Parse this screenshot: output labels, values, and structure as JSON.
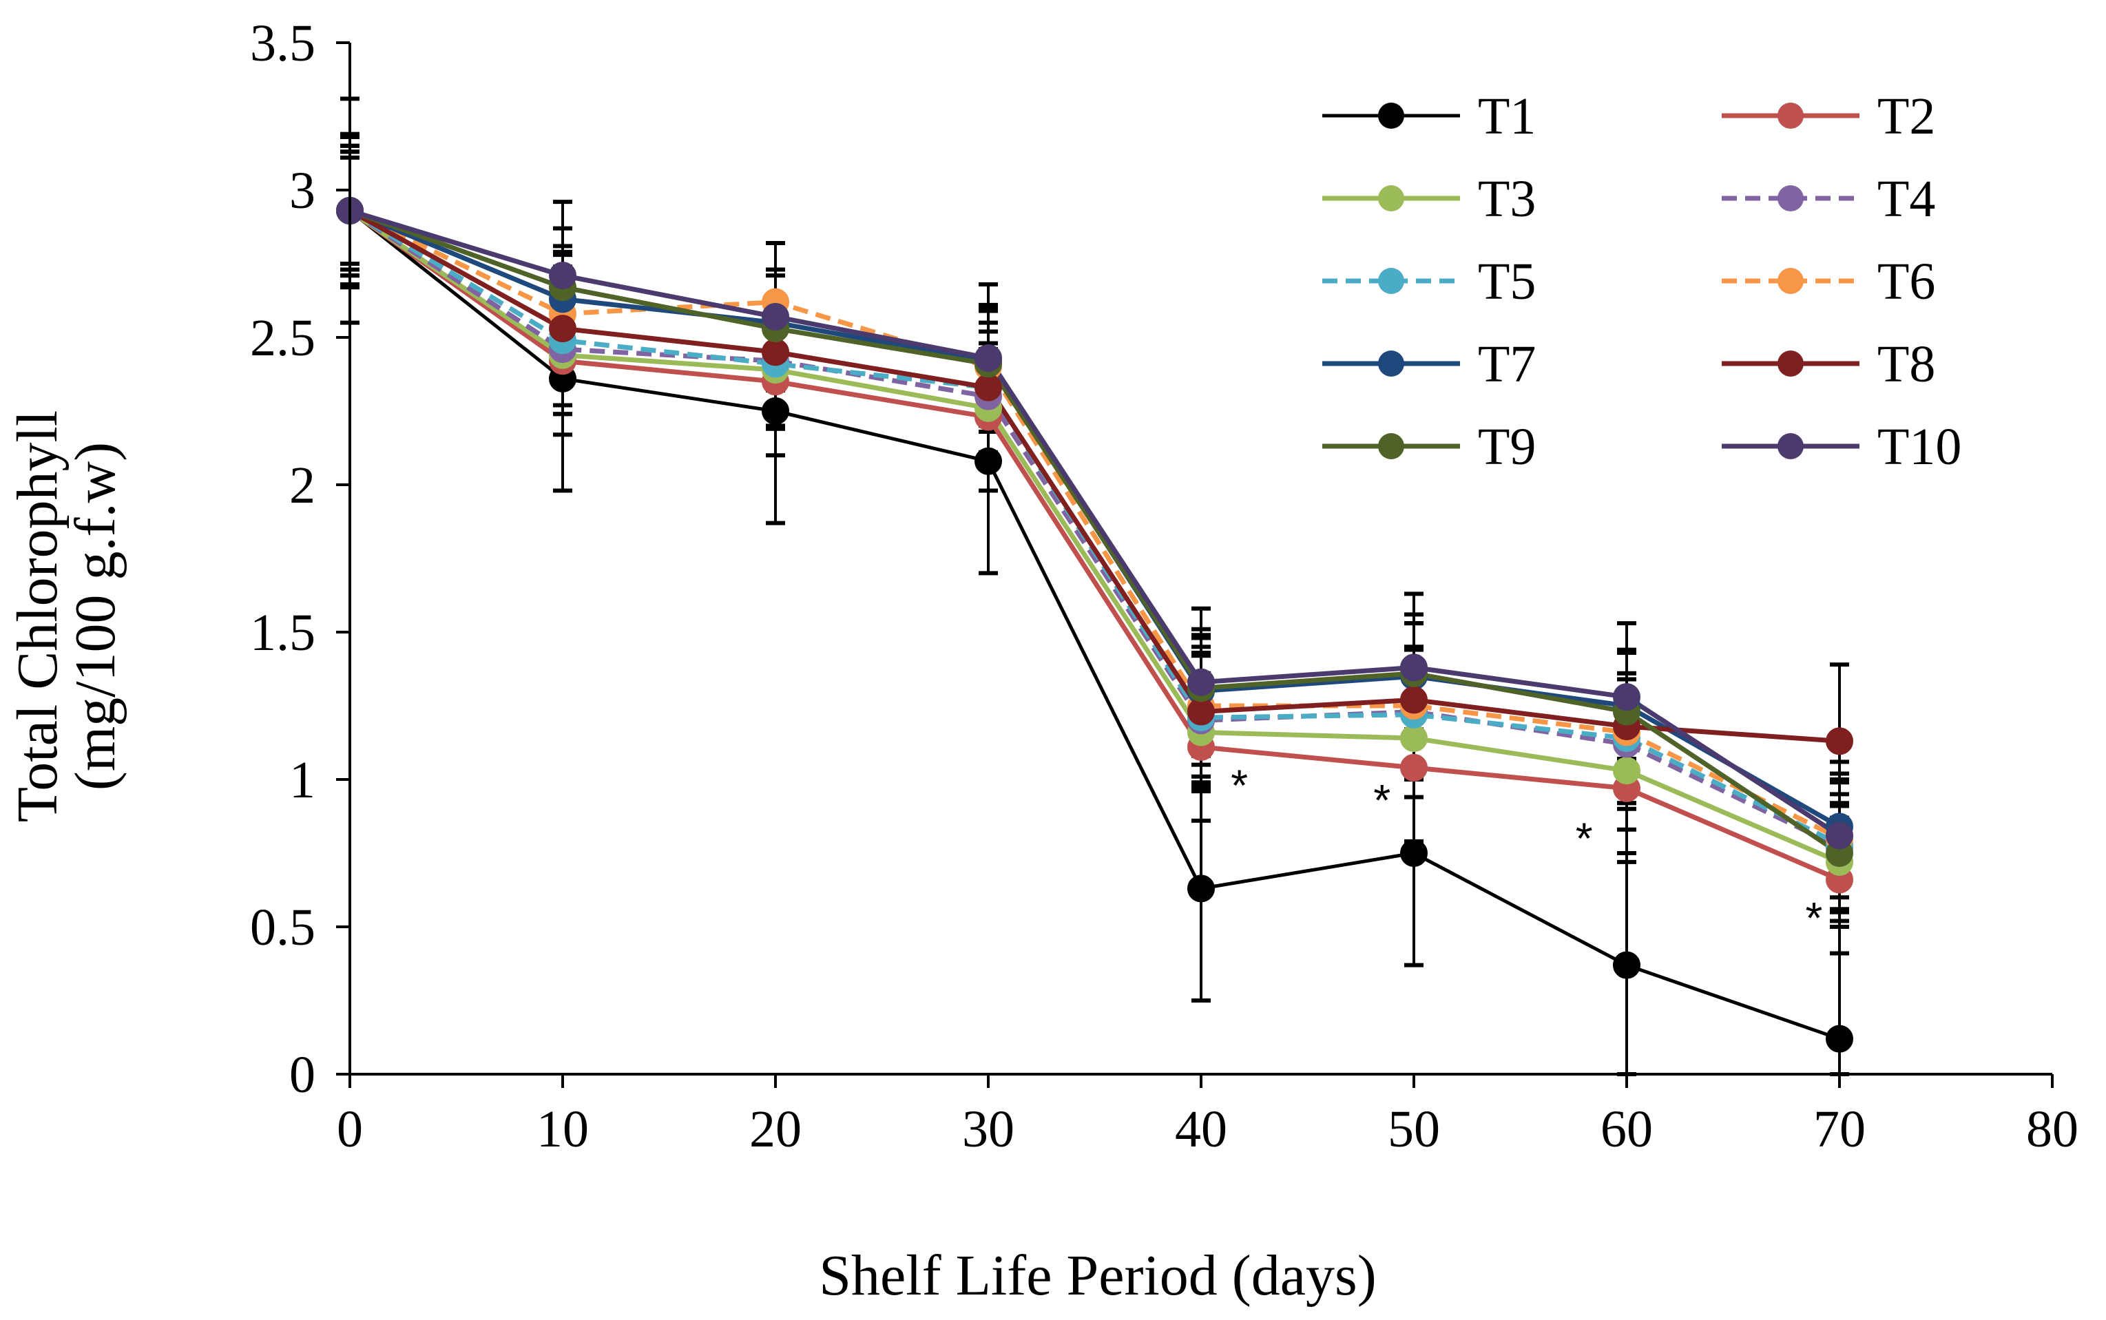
{
  "chart_data": {
    "type": "line",
    "title": "",
    "xlabel": "Shelf Life Period (days)",
    "ylabel_line1": "Total Chlorophyll",
    "ylabel_line2": "(mg/100 g.f.w)",
    "x": [
      0,
      10,
      20,
      30,
      40,
      50,
      60,
      70
    ],
    "xlim": [
      0,
      80
    ],
    "ylim": [
      0,
      3.5
    ],
    "x_ticks": [
      "0",
      "10",
      "20",
      "30",
      "40",
      "50",
      "60",
      "70",
      "80"
    ],
    "y_ticks": [
      "0",
      "0.5",
      "1",
      "1.5",
      "2",
      "2.5",
      "3",
      "3.5"
    ],
    "grid": false,
    "legend_position": "top-right",
    "series": [
      {
        "name": "T1",
        "color": "#000000",
        "dash": false,
        "values": [
          2.93,
          2.36,
          2.25,
          2.08,
          0.63,
          0.75,
          0.37,
          0.12
        ],
        "error": [
          0.38,
          0.38,
          0.38,
          0.38,
          0.38,
          0.38,
          0.38,
          0.38
        ]
      },
      {
        "name": "T2",
        "color": "#C0504D",
        "dash": false,
        "values": [
          2.93,
          2.42,
          2.35,
          2.23,
          1.11,
          1.04,
          0.97,
          0.66
        ],
        "error": [
          0.25,
          0.25,
          0.25,
          0.25,
          0.25,
          0.25,
          0.25,
          0.25
        ]
      },
      {
        "name": "T3",
        "color": "#9BBB59",
        "dash": false,
        "values": [
          2.93,
          2.44,
          2.39,
          2.26,
          1.16,
          1.14,
          1.03,
          0.72
        ],
        "error": [
          0.2,
          0.2,
          0.2,
          0.2,
          0.2,
          0.2,
          0.2,
          0.2
        ]
      },
      {
        "name": "T4",
        "color": "#8064A2",
        "dash": true,
        "values": [
          2.93,
          2.46,
          2.42,
          2.3,
          1.2,
          1.23,
          1.12,
          0.77
        ],
        "error": [
          0.22,
          0.22,
          0.22,
          0.22,
          0.22,
          0.22,
          0.22,
          0.22
        ]
      },
      {
        "name": "T5",
        "color": "#4BACC6",
        "dash": true,
        "values": [
          2.93,
          2.49,
          2.41,
          2.33,
          1.21,
          1.22,
          1.14,
          0.78
        ],
        "error": [
          0.22,
          0.22,
          0.22,
          0.22,
          0.22,
          0.22,
          0.22,
          0.22
        ]
      },
      {
        "name": "T6",
        "color": "#F79646",
        "dash": true,
        "values": [
          2.93,
          2.58,
          2.62,
          2.4,
          1.25,
          1.25,
          1.16,
          0.8
        ],
        "error": [
          0.2,
          0.2,
          0.2,
          0.2,
          0.2,
          0.2,
          0.2,
          0.2
        ]
      },
      {
        "name": "T7",
        "color": "#1F497D",
        "dash": false,
        "values": [
          2.93,
          2.63,
          2.55,
          2.42,
          1.3,
          1.35,
          1.25,
          0.84
        ],
        "error": [
          0.18,
          0.18,
          0.18,
          0.18,
          0.18,
          0.18,
          0.18,
          0.18
        ]
      },
      {
        "name": "T8",
        "color": "#7F1F1F",
        "dash": false,
        "values": [
          2.93,
          2.53,
          2.45,
          2.33,
          1.23,
          1.27,
          1.18,
          1.13
        ],
        "error": [
          0.26,
          0.26,
          0.26,
          0.26,
          0.26,
          0.26,
          0.26,
          0.26
        ]
      },
      {
        "name": "T9",
        "color": "#4F6228",
        "dash": false,
        "values": [
          2.93,
          2.67,
          2.53,
          2.41,
          1.31,
          1.36,
          1.23,
          0.75
        ],
        "error": [
          0.2,
          0.2,
          0.2,
          0.2,
          0.2,
          0.2,
          0.2,
          0.2
        ]
      },
      {
        "name": "T10",
        "color": "#4B3A6E",
        "dash": false,
        "values": [
          2.93,
          2.71,
          2.57,
          2.43,
          1.33,
          1.38,
          1.28,
          0.81
        ],
        "error": [
          0.25,
          0.25,
          0.25,
          0.25,
          0.25,
          0.25,
          0.25,
          0.25
        ]
      }
    ],
    "annotations": [
      {
        "text": "*",
        "x": 41.8,
        "y": 0.98
      },
      {
        "text": "*",
        "x": 48.5,
        "y": 0.93
      },
      {
        "text": "*",
        "x": 58.0,
        "y": 0.8
      },
      {
        "text": "*",
        "x": 68.8,
        "y": 0.53
      }
    ]
  }
}
